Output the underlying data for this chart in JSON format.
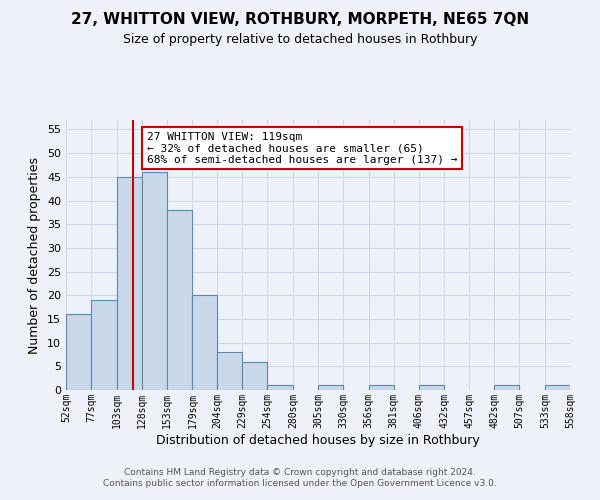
{
  "title": "27, WHITTON VIEW, ROTHBURY, MORPETH, NE65 7QN",
  "subtitle": "Size of property relative to detached houses in Rothbury",
  "xlabel": "Distribution of detached houses by size in Rothbury",
  "ylabel": "Number of detached properties",
  "bin_edges": [
    52,
    77,
    103,
    128,
    153,
    179,
    204,
    229,
    254,
    280,
    305,
    330,
    356,
    381,
    406,
    432,
    457,
    482,
    507,
    533,
    558
  ],
  "bar_heights": [
    16,
    19,
    45,
    46,
    38,
    20,
    8,
    6,
    1,
    0,
    1,
    0,
    1,
    0,
    1,
    0,
    0,
    1,
    0,
    1
  ],
  "bar_color": "#c8d8e8",
  "bar_edge_color": "#5a8ab0",
  "bar_edge_width": 0.8,
  "property_size": 119,
  "red_line_color": "#cc0000",
  "annotation_line1": "27 WHITTON VIEW: 119sqm",
  "annotation_line2": "← 32% of detached houses are smaller (65)",
  "annotation_line3": "68% of semi-detached houses are larger (137) →",
  "annotation_box_color": "#ffffff",
  "annotation_box_edge_color": "#cc0000",
  "ylim": [
    0,
    57
  ],
  "yticks": [
    0,
    5,
    10,
    15,
    20,
    25,
    30,
    35,
    40,
    45,
    50,
    55
  ],
  "grid_color": "#d0d8e8",
  "background_color": "#eef2f8",
  "footer_line1": "Contains HM Land Registry data © Crown copyright and database right 2024.",
  "footer_line2": "Contains public sector information licensed under the Open Government Licence v3.0.",
  "tick_labels": [
    "52sqm",
    "77sqm",
    "103sqm",
    "128sqm",
    "153sqm",
    "179sqm",
    "204sqm",
    "229sqm",
    "254sqm",
    "280sqm",
    "305sqm",
    "330sqm",
    "356sqm",
    "381sqm",
    "406sqm",
    "432sqm",
    "457sqm",
    "482sqm",
    "507sqm",
    "533sqm",
    "558sqm"
  ],
  "title_fontsize": 11,
  "subtitle_fontsize": 9,
  "xlabel_fontsize": 9,
  "ylabel_fontsize": 9,
  "annotation_fontsize": 8,
  "footer_fontsize": 6.5,
  "ytick_fontsize": 8,
  "xtick_fontsize": 7
}
